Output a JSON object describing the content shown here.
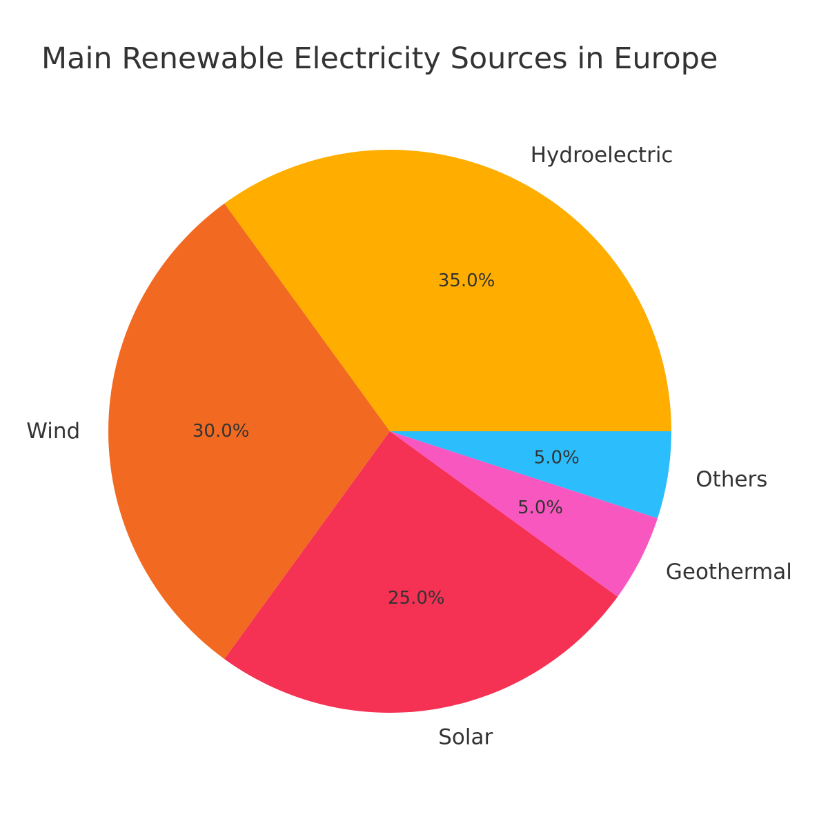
{
  "chart_data": {
    "type": "pie",
    "title": "Main Renewable Electricity Sources in Europe",
    "categories": [
      "Hydroelectric",
      "Wind",
      "Solar",
      "Geothermal",
      "Others"
    ],
    "values": [
      35.0,
      30.0,
      25.0,
      5.0,
      5.0
    ],
    "percent_labels": [
      "35.0%",
      "30.0%",
      "25.0%",
      "5.0%",
      "5.0%"
    ],
    "colors": [
      "#ffae00",
      "#f26a21",
      "#f53154",
      "#f957c0",
      "#2bbdfc"
    ],
    "start_angle_deg": 0,
    "direction": "counterclockwise",
    "legend": "none"
  }
}
